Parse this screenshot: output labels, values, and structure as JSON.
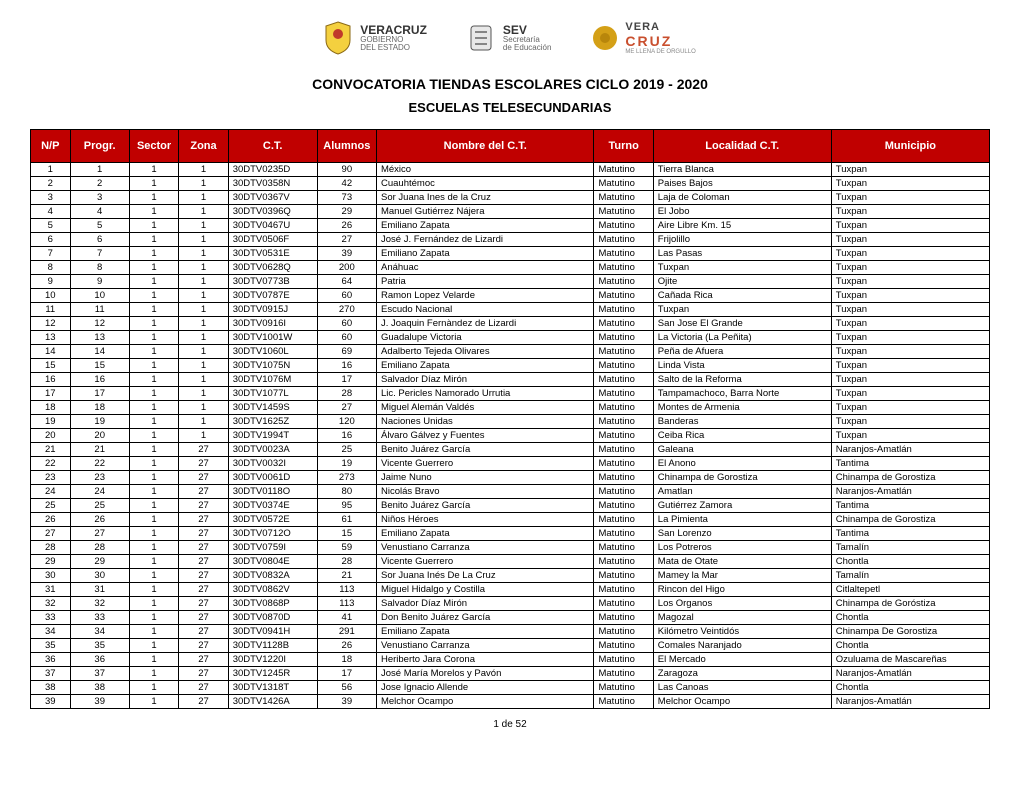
{
  "logos": {
    "veracruz_gobierno": {
      "line1": "VERACRUZ",
      "line2": "GOBIERNO",
      "line3": "DEL ESTADO"
    },
    "sev": {
      "line1": "SEV",
      "line2": "Secretaría",
      "line3": "de Educación"
    },
    "vera_cruz": {
      "line1": "VERA",
      "line2": "CRUZ",
      "tag": "ME LLENA DE ORGULLO"
    }
  },
  "titles": {
    "main": "CONVOCATORIA TIENDAS ESCOLARES CICLO 2019 - 2020",
    "sub": "ESCUELAS TELESECUNDARIAS"
  },
  "columns": [
    "N/P",
    "Progr.",
    "Sector",
    "Zona",
    "C.T.",
    "Alumnos",
    "Nombre del C.T.",
    "Turno",
    "Localidad C.T.",
    "Municipio"
  ],
  "colors": {
    "header_bg": "#c00000",
    "header_fg": "#ffffff",
    "border": "#000000",
    "body_text": "#000000"
  },
  "rows": [
    {
      "np": "1",
      "progr": "1",
      "sector": "1",
      "zona": "1",
      "ct": "30DTV0235D",
      "alumnos": "90",
      "nombre": "México",
      "turno": "Matutino",
      "localidad": "Tierra Blanca",
      "municipio": "Tuxpan"
    },
    {
      "np": "2",
      "progr": "2",
      "sector": "1",
      "zona": "1",
      "ct": "30DTV0358N",
      "alumnos": "42",
      "nombre": "Cuauhtémoc",
      "turno": "Matutino",
      "localidad": "Paises Bajos",
      "municipio": "Tuxpan"
    },
    {
      "np": "3",
      "progr": "3",
      "sector": "1",
      "zona": "1",
      "ct": "30DTV0367V",
      "alumnos": "73",
      "nombre": "Sor Juana Ines de la Cruz",
      "turno": "Matutino",
      "localidad": "Laja de Coloman",
      "municipio": "Tuxpan"
    },
    {
      "np": "4",
      "progr": "4",
      "sector": "1",
      "zona": "1",
      "ct": "30DTV0396Q",
      "alumnos": "29",
      "nombre": "Manuel Gutiérrez Nájera",
      "turno": "Matutino",
      "localidad": "El Jobo",
      "municipio": "Tuxpan"
    },
    {
      "np": "5",
      "progr": "5",
      "sector": "1",
      "zona": "1",
      "ct": "30DTV0467U",
      "alumnos": "26",
      "nombre": " Emiliano Zapata",
      "turno": "Matutino",
      "localidad": "Aire Libre Km. 15",
      "municipio": "Tuxpan"
    },
    {
      "np": "6",
      "progr": "6",
      "sector": "1",
      "zona": "1",
      "ct": "30DTV0506F",
      "alumnos": "27",
      "nombre": "José J. Fernández de Lizardi",
      "turno": "Matutino",
      "localidad": "Frijolillo",
      "municipio": "Tuxpan"
    },
    {
      "np": "7",
      "progr": "7",
      "sector": "1",
      "zona": "1",
      "ct": "30DTV0531E",
      "alumnos": "39",
      "nombre": "Emiliano Zapata",
      "turno": "Matutino",
      "localidad": "Las Pasas",
      "municipio": "Tuxpan"
    },
    {
      "np": "8",
      "progr": "8",
      "sector": "1",
      "zona": "1",
      "ct": "30DTV0628Q",
      "alumnos": "200",
      "nombre": "Anáhuac",
      "turno": "Matutino",
      "localidad": "Tuxpan",
      "municipio": "Tuxpan"
    },
    {
      "np": "9",
      "progr": "9",
      "sector": "1",
      "zona": "1",
      "ct": "30DTV0773B",
      "alumnos": "64",
      "nombre": "Patria",
      "turno": "Matutino",
      "localidad": "Ojite",
      "municipio": "Tuxpan"
    },
    {
      "np": "10",
      "progr": "10",
      "sector": "1",
      "zona": "1",
      "ct": "30DTV0787E",
      "alumnos": "60",
      "nombre": "Ramon Lopez Velarde",
      "turno": "Matutino",
      "localidad": "Cañada Rica",
      "municipio": "Tuxpan"
    },
    {
      "np": "11",
      "progr": "11",
      "sector": "1",
      "zona": "1",
      "ct": "30DTV0915J",
      "alumnos": "270",
      "nombre": "Escudo Nacional",
      "turno": "Matutino",
      "localidad": "Tuxpan",
      "municipio": "Tuxpan"
    },
    {
      "np": "12",
      "progr": "12",
      "sector": "1",
      "zona": "1",
      "ct": "30DTV0916I",
      "alumnos": "60",
      "nombre": "J. Joaquin Fernàndez de Lizardi",
      "turno": "Matutino",
      "localidad": "San Jose El Grande",
      "municipio": "Tuxpan"
    },
    {
      "np": "13",
      "progr": "13",
      "sector": "1",
      "zona": "1",
      "ct": "30DTV1001W",
      "alumnos": "60",
      "nombre": "Guadalupe Victoria",
      "turno": "Matutino",
      "localidad": "La Victoria  (La Peñita)",
      "municipio": "Tuxpan"
    },
    {
      "np": "14",
      "progr": "14",
      "sector": "1",
      "zona": "1",
      "ct": "30DTV1060L",
      "alumnos": "69",
      "nombre": "Adalberto Tejeda Olivares",
      "turno": "Matutino",
      "localidad": "Peña de Afuera",
      "municipio": "Tuxpan"
    },
    {
      "np": "15",
      "progr": "15",
      "sector": "1",
      "zona": "1",
      "ct": "30DTV1075N",
      "alumnos": "16",
      "nombre": "Emiliano Zapata",
      "turno": "Matutino",
      "localidad": "Linda Vista",
      "municipio": "Tuxpan"
    },
    {
      "np": "16",
      "progr": "16",
      "sector": "1",
      "zona": "1",
      "ct": "30DTV1076M",
      "alumnos": "17",
      "nombre": "Salvador Díaz Mirón",
      "turno": "Matutino",
      "localidad": "Salto de la Reforma",
      "municipio": "Tuxpan"
    },
    {
      "np": "17",
      "progr": "17",
      "sector": "1",
      "zona": "1",
      "ct": "30DTV1077L",
      "alumnos": "28",
      "nombre": "Lic. Pericles Namorado Urrutia",
      "turno": "Matutino",
      "localidad": "Tampamachoco, Barra Norte",
      "municipio": "Tuxpan"
    },
    {
      "np": "18",
      "progr": "18",
      "sector": "1",
      "zona": "1",
      "ct": "30DTV1459S",
      "alumnos": "27",
      "nombre": "Miguel Alemán Valdés",
      "turno": "Matutino",
      "localidad": "Montes de Armenia",
      "municipio": "Tuxpan"
    },
    {
      "np": "19",
      "progr": "19",
      "sector": "1",
      "zona": "1",
      "ct": "30DTV1625Z",
      "alumnos": "120",
      "nombre": "Naciones Unidas",
      "turno": "Matutino",
      "localidad": "Banderas",
      "municipio": "Tuxpan"
    },
    {
      "np": "20",
      "progr": "20",
      "sector": "1",
      "zona": "1",
      "ct": "30DTV1994T",
      "alumnos": "16",
      "nombre": "Álvaro Gálvez y Fuentes",
      "turno": "Matutino",
      "localidad": "Ceiba Rica",
      "municipio": "Tuxpan"
    },
    {
      "np": "21",
      "progr": "21",
      "sector": "1",
      "zona": "27",
      "ct": "30DTV0023A",
      "alumnos": "25",
      "nombre": "Benito Juárez García",
      "turno": "Matutino",
      "localidad": "Galeana",
      "municipio": "Naranjos-Amatlán"
    },
    {
      "np": "22",
      "progr": "22",
      "sector": "1",
      "zona": "27",
      "ct": "30DTV0032I",
      "alumnos": "19",
      "nombre": "Vicente Guerrero",
      "turno": "Matutino",
      "localidad": "El Anono",
      "municipio": "Tantima"
    },
    {
      "np": "23",
      "progr": "23",
      "sector": "1",
      "zona": "27",
      "ct": "30DTV0061D",
      "alumnos": "273",
      "nombre": "Jaime Nuno",
      "turno": "Matutino",
      "localidad": "Chinampa de Gorostiza",
      "municipio": "Chinampa de Gorostiza"
    },
    {
      "np": "24",
      "progr": "24",
      "sector": "1",
      "zona": "27",
      "ct": "30DTV0118O",
      "alumnos": "80",
      "nombre": "Nicolás Bravo",
      "turno": "Matutino",
      "localidad": "Amatlan",
      "municipio": "Naranjos-Amatlán"
    },
    {
      "np": "25",
      "progr": "25",
      "sector": "1",
      "zona": "27",
      "ct": "30DTV0374E",
      "alumnos": "95",
      "nombre": "Benito Juárez García",
      "turno": "Matutino",
      "localidad": "Gutiérrez Zamora",
      "municipio": "Tantima"
    },
    {
      "np": "26",
      "progr": "26",
      "sector": "1",
      "zona": "27",
      "ct": "30DTV0572E",
      "alumnos": "61",
      "nombre": "Niños Héroes",
      "turno": "Matutino",
      "localidad": "La Pimienta",
      "municipio": "Chinampa de Gorostiza"
    },
    {
      "np": "27",
      "progr": "27",
      "sector": "1",
      "zona": "27",
      "ct": "30DTV0712O",
      "alumnos": "15",
      "nombre": "Emiliano Zapata",
      "turno": "Matutino",
      "localidad": "San Lorenzo",
      "municipio": "Tantima"
    },
    {
      "np": "28",
      "progr": "28",
      "sector": "1",
      "zona": "27",
      "ct": "30DTV0759I",
      "alumnos": "59",
      "nombre": "Venustiano Carranza",
      "turno": "Matutino",
      "localidad": "Los Potreros",
      "municipio": "Tamalín"
    },
    {
      "np": "29",
      "progr": "29",
      "sector": "1",
      "zona": "27",
      "ct": "30DTV0804E",
      "alumnos": "28",
      "nombre": "Vicente  Guerrero",
      "turno": "Matutino",
      "localidad": "Mata de Otate",
      "municipio": "Chontla"
    },
    {
      "np": "30",
      "progr": "30",
      "sector": "1",
      "zona": "27",
      "ct": "30DTV0832A",
      "alumnos": "21",
      "nombre": "Sor Juana Inés De La Cruz",
      "turno": "Matutino",
      "localidad": "Mamey la Mar",
      "municipio": "Tamalín"
    },
    {
      "np": "31",
      "progr": "31",
      "sector": "1",
      "zona": "27",
      "ct": "30DTV0862V",
      "alumnos": "113",
      "nombre": "Miguel Hidalgo y Costilla",
      "turno": "Matutino",
      "localidad": "Rincon del Higo",
      "municipio": "Citlaltepetl"
    },
    {
      "np": "32",
      "progr": "32",
      "sector": "1",
      "zona": "27",
      "ct": "30DTV0868P",
      "alumnos": "113",
      "nombre": "Salvador Díaz Mirón",
      "turno": "Matutino",
      "localidad": "Los Organos",
      "municipio": "Chinampa de Goróstiza"
    },
    {
      "np": "33",
      "progr": "33",
      "sector": "1",
      "zona": "27",
      "ct": "30DTV0870D",
      "alumnos": "41",
      "nombre": "Don Benito Juárez García",
      "turno": "Matutino",
      "localidad": "Magozal",
      "municipio": "Chontla"
    },
    {
      "np": "34",
      "progr": "34",
      "sector": "1",
      "zona": "27",
      "ct": "30DTV0941H",
      "alumnos": "291",
      "nombre": "Emiliano Zapata",
      "turno": "Matutino",
      "localidad": "Kilómetro Veintidós",
      "municipio": "Chinampa De Gorostiza"
    },
    {
      "np": "35",
      "progr": "35",
      "sector": "1",
      "zona": "27",
      "ct": "30DTV1128B",
      "alumnos": "26",
      "nombre": "Venustiano Carranza",
      "turno": "Matutino",
      "localidad": "Comales Naranjado",
      "municipio": "Chontla"
    },
    {
      "np": "36",
      "progr": "36",
      "sector": "1",
      "zona": "27",
      "ct": "30DTV1220I",
      "alumnos": "18",
      "nombre": "Heriberto Jara Corona",
      "turno": "Matutino",
      "localidad": "El Mercado",
      "municipio": "Ozuluama de Mascareñas"
    },
    {
      "np": "37",
      "progr": "37",
      "sector": "1",
      "zona": "27",
      "ct": "30DTV1245R",
      "alumnos": "17",
      "nombre": "José María Morelos y Pavón",
      "turno": "Matutino",
      "localidad": "Zaragoza",
      "municipio": "Naranjos-Amatlán"
    },
    {
      "np": "38",
      "progr": "38",
      "sector": "1",
      "zona": "27",
      "ct": "30DTV1318T",
      "alumnos": "56",
      "nombre": "Jose Ignacio Allende",
      "turno": "Matutino",
      "localidad": "Las Canoas",
      "municipio": "Chontla"
    },
    {
      "np": "39",
      "progr": "39",
      "sector": "1",
      "zona": "27",
      "ct": "30DTV1426A",
      "alumnos": "39",
      "nombre": "Melchor Ocampo",
      "turno": "Matutino",
      "localidad": "Melchor Ocampo",
      "municipio": "Naranjos-Amatlán"
    }
  ],
  "footer": "1 de 52"
}
